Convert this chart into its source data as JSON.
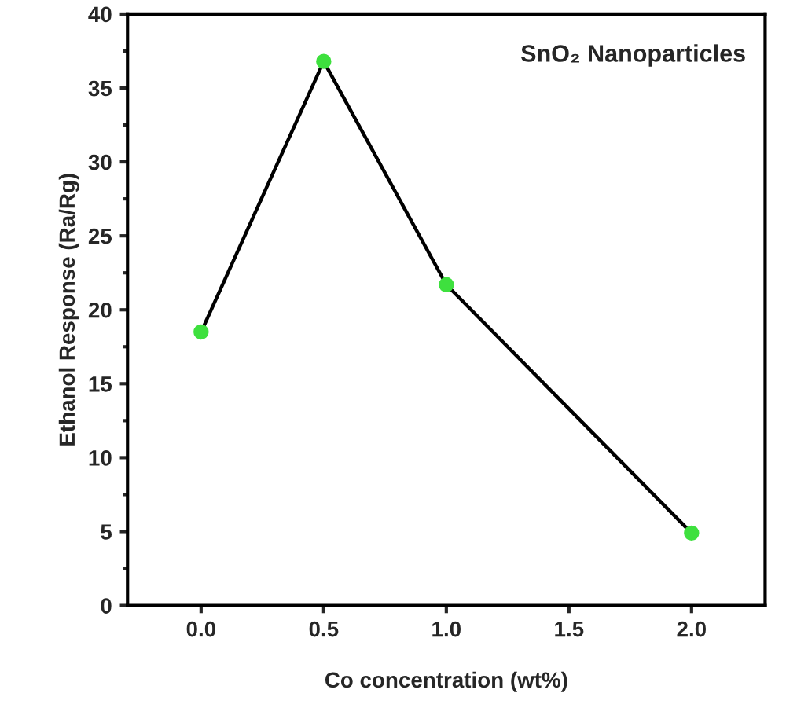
{
  "chart_data": {
    "type": "line",
    "xlabel": "Co concentration (wt%)",
    "ylabel": "Ethanol Response (Ra/Rg)",
    "annotations": [
      "SnO₂ Nanoparticles"
    ],
    "x": [
      0.0,
      0.5,
      1.0,
      2.0
    ],
    "series": [
      {
        "color": "#3ee03e",
        "values": [
          18.5,
          36.8,
          21.7,
          4.9
        ]
      }
    ],
    "xlim": [
      -0.3,
      2.3
    ],
    "xticks": [
      {
        "value": 0,
        "label": "0.0"
      },
      {
        "value": 0.5,
        "label": "0.5"
      },
      {
        "value": 1,
        "label": "1.0"
      },
      {
        "value": 1.5,
        "label": "1.5"
      },
      {
        "value": 2,
        "label": "2.0"
      }
    ],
    "ylim": [
      0,
      40
    ],
    "yticks": [
      0,
      5,
      10,
      15,
      20,
      25,
      30,
      35,
      40
    ],
    "grid": false,
    "legend": false,
    "marker": "circle",
    "line_style": "solid"
  }
}
